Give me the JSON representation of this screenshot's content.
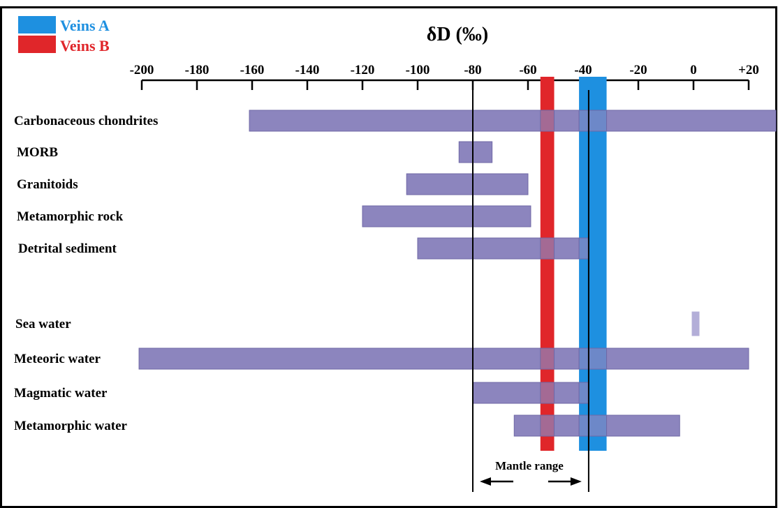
{
  "chart_data": {
    "type": "bar",
    "title": "δD (‰)",
    "xlim": [
      -200,
      20
    ],
    "x_ticks": [
      -200,
      -180,
      -160,
      -140,
      -120,
      -100,
      -80,
      -60,
      -40,
      -20,
      0,
      20
    ],
    "x_tick_labels": [
      "-200",
      "-180",
      "-160",
      "-140",
      "-120",
      "-100",
      "-80",
      "-60",
      "-40",
      "-20",
      "0",
      "+20"
    ],
    "categories": [
      "Carbonaceous chondrites",
      "MORB",
      "Granitoids",
      "Metamorphic rock",
      "Detrital sediment",
      "Sea water",
      "Meteoric water",
      "Magmatic water",
      "Metamorphic water"
    ],
    "ranges": [
      {
        "category": "Carbonaceous chondrites",
        "min": -161,
        "max": 30
      },
      {
        "category": "MORB",
        "min": -85,
        "max": -73
      },
      {
        "category": "Granitoids",
        "min": -104,
        "max": -60
      },
      {
        "category": "Metamorphic rock",
        "min": -120,
        "max": -59
      },
      {
        "category": "Detrital sediment",
        "min": -100,
        "max": -38
      },
      {
        "category": "Sea water",
        "min": -0.5,
        "max": 2
      },
      {
        "category": "Meteoric water",
        "min": -201,
        "max": 20
      },
      {
        "category": "Magmatic water",
        "min": -80,
        "max": -38
      },
      {
        "category": "Metamorphic water",
        "min": -65,
        "max": -5
      }
    ],
    "bands": [
      {
        "name": "Veins A",
        "min": -41.5,
        "max": -31.5,
        "color": "#1E90E0"
      },
      {
        "name": "Veins B",
        "min": -55.5,
        "max": -50.5,
        "color": "#E0262A"
      }
    ],
    "reference_lines": [
      -80,
      -38
    ],
    "annotation": {
      "label": "Mantle range",
      "from": -80,
      "to": -38
    },
    "legend": {
      "placement": "top-left",
      "items": [
        {
          "name": "Veins A",
          "color": "#1E90E0"
        },
        {
          "name": "Veins B",
          "color": "#E0262A"
        }
      ]
    },
    "colors": {
      "range_bar": "#8C85BE",
      "sea_water_bar": "#B3AED8",
      "axis": "#000000"
    }
  }
}
